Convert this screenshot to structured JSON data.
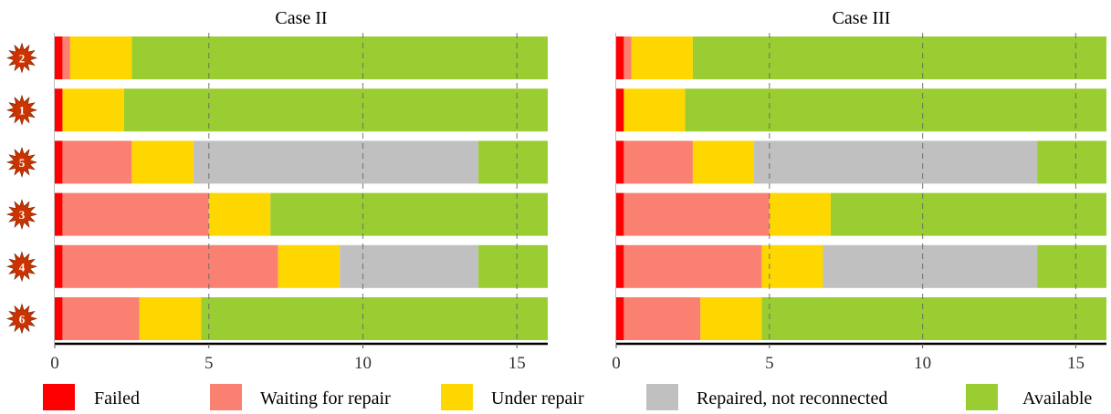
{
  "chart_data": {
    "type": "bar",
    "orientation": "horizontal",
    "stacked": true,
    "segment_order": [
      "Failed",
      "Waiting for repair",
      "Under repair",
      "Repaired, not reconnected",
      "Available"
    ],
    "colors": {
      "Failed": "#ff0000",
      "Waiting for repair": "#fa8072",
      "Under repair": "#ffd700",
      "Repaired, not reconnected": "#c0c0c0",
      "Available": "#9acd32"
    },
    "badge_color": "#cc3300",
    "grid": "vertical dashed",
    "legend_position": "bottom",
    "panels": [
      {
        "title": "Case II",
        "xlim": [
          0,
          16
        ],
        "xticks": [
          0,
          5,
          10,
          15
        ],
        "rows": [
          {
            "label": "2",
            "segments": [
              0.25,
              0.25,
              2.0,
              0,
              13.5
            ]
          },
          {
            "label": "1",
            "segments": [
              0.25,
              0,
              2.0,
              0,
              13.75
            ]
          },
          {
            "label": "5",
            "segments": [
              0.25,
              2.25,
              2.0,
              9.25,
              2.25
            ]
          },
          {
            "label": "3",
            "segments": [
              0.25,
              4.75,
              2.0,
              0,
              9.0
            ]
          },
          {
            "label": "4",
            "segments": [
              0.25,
              7.0,
              2.0,
              4.5,
              2.25
            ]
          },
          {
            "label": "6",
            "segments": [
              0.25,
              2.5,
              2.0,
              0,
              11.25
            ]
          }
        ]
      },
      {
        "title": "Case III",
        "xlim": [
          0,
          16
        ],
        "xticks": [
          0,
          5,
          10,
          15
        ],
        "rows": [
          {
            "label": "2",
            "segments": [
              0.25,
              0.25,
              2.0,
              0,
              13.5
            ]
          },
          {
            "label": "1",
            "segments": [
              0.25,
              0,
              2.0,
              0,
              13.75
            ]
          },
          {
            "label": "5",
            "segments": [
              0.25,
              2.25,
              2.0,
              9.25,
              2.25
            ]
          },
          {
            "label": "3",
            "segments": [
              0.25,
              4.75,
              2.0,
              0,
              9.0
            ]
          },
          {
            "label": "4",
            "segments": [
              0.25,
              4.5,
              2.0,
              7.0,
              2.25
            ]
          },
          {
            "label": "6",
            "segments": [
              0.25,
              2.5,
              2.0,
              0,
              11.25
            ]
          }
        ]
      }
    ]
  }
}
